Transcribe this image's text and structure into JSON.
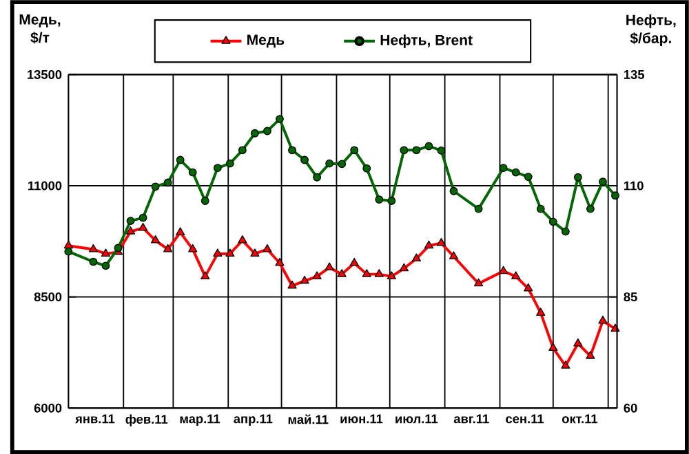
{
  "chart_data": {
    "type": "line",
    "ylabel": "Медь, $/т",
    "y2label": "Нефть, $/бар.",
    "x": [
      "2011-01-01",
      "2011-01-15",
      "2011-01-22",
      "2011-01-29",
      "2011-02-05",
      "2011-02-12",
      "2011-02-19",
      "2011-02-26",
      "2011-03-05",
      "2011-03-12",
      "2011-03-19",
      "2011-03-26",
      "2011-04-02",
      "2011-04-09",
      "2011-04-16",
      "2011-04-23",
      "2011-04-30",
      "2011-05-07",
      "2011-05-14",
      "2011-05-21",
      "2011-05-28",
      "2011-06-04",
      "2011-06-11",
      "2011-06-18",
      "2011-06-25",
      "2011-07-02",
      "2011-07-09",
      "2011-07-16",
      "2011-07-23",
      "2011-07-30",
      "2011-08-06",
      "2011-08-20",
      "2011-09-03",
      "2011-09-10",
      "2011-09-17",
      "2011-09-24",
      "2011-10-01",
      "2011-10-08",
      "2011-10-15",
      "2011-10-22",
      "2011-10-29",
      "2011-11-05"
    ],
    "series": [
      {
        "name": "Медь",
        "color": "#ff0000",
        "marker": "triangle",
        "values": [
          9650,
          9570,
          9470,
          9510,
          9970,
          10050,
          9770,
          9570,
          9950,
          9570,
          8960,
          9470,
          9470,
          9770,
          9470,
          9570,
          9260,
          8750,
          8860,
          8960,
          9160,
          9010,
          9260,
          9010,
          9010,
          8960,
          9140,
          9360,
          9650,
          9710,
          9410,
          8800,
          9080,
          8960,
          8690,
          8140,
          7350,
          6950,
          7450,
          7170,
          7960,
          7780
        ]
      },
      {
        "name": "Нефть, Brent",
        "color": "#006600",
        "marker": "circle",
        "axis": "y2",
        "values": [
          95.2,
          92.9,
          92.0,
          96.0,
          102.1,
          102.8,
          109.8,
          110.7,
          115.8,
          113.0,
          106.6,
          114.0,
          115.0,
          118.0,
          121.8,
          122.3,
          125.0,
          118.0,
          115.8,
          111.9,
          115.0,
          114.9,
          118.0,
          113.9,
          106.9,
          106.6,
          118.0,
          118.0,
          118.9,
          117.9,
          108.8,
          104.8,
          114.0,
          113.0,
          112.0,
          104.8,
          101.9,
          99.7,
          111.9,
          104.8,
          110.9,
          107.8
        ]
      }
    ],
    "xlim": [
      "2011-01-01",
      "2011-11-06"
    ],
    "xticks": [
      {
        "value": "2011-02-01",
        "label": null
      },
      {
        "value": "2011-03-01",
        "label": null
      },
      {
        "value": "2011-04-01",
        "label": null
      },
      {
        "value": "2011-05-01",
        "label": null
      },
      {
        "value": "2011-06-01",
        "label": null
      },
      {
        "value": "2011-07-01",
        "label": null
      },
      {
        "value": "2011-08-01",
        "label": null
      },
      {
        "value": "2011-09-01",
        "label": null
      },
      {
        "value": "2011-10-01",
        "label": null
      },
      {
        "value": "2011-11-01",
        "label": null
      },
      {
        "value": "2011-01-16",
        "label": "янв.11"
      },
      {
        "value": "2011-02-14",
        "label": "фев.11"
      },
      {
        "value": "2011-03-16",
        "label": "мар.11"
      },
      {
        "value": "2011-04-15",
        "label": "апр.11"
      },
      {
        "value": "2011-05-16",
        "label": "май.11"
      },
      {
        "value": "2011-06-15",
        "label": "июн.11"
      },
      {
        "value": "2011-07-16",
        "label": "июл.11"
      },
      {
        "value": "2011-08-16",
        "label": "авг.11"
      },
      {
        "value": "2011-09-15",
        "label": "сен.11"
      },
      {
        "value": "2011-10-16",
        "label": "окт.11"
      }
    ],
    "ylim": [
      6000,
      13500
    ],
    "yticks": [
      6000,
      8500,
      11000,
      13500
    ],
    "y2lim": [
      60,
      135
    ],
    "y2ticks": [
      60,
      85,
      110,
      135
    ],
    "grid": true,
    "legend": "top",
    "line_style": "solid"
  }
}
